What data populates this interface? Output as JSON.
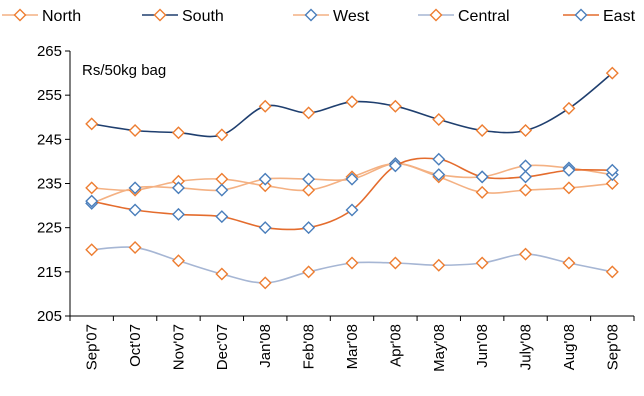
{
  "chart_data": {
    "type": "line",
    "title": "",
    "unit_label": "Rs/50kg bag",
    "xlabel": "",
    "ylabel": "",
    "ylim": [
      205,
      265
    ],
    "yticks": [
      205,
      215,
      225,
      235,
      245,
      255,
      265
    ],
    "grid": false,
    "legend_position": "top",
    "categories": [
      "Sep'07",
      "Oct'07",
      "Nov'07",
      "Dec'07",
      "Jan'08",
      "Feb'08",
      "Mar'08",
      "Apr'08",
      "May'08",
      "Jun'08",
      "July'08",
      "Aug'08",
      "Sep'08"
    ],
    "series": [
      {
        "name": "North",
        "color": "#f4b183",
        "marker": "#ed7d31",
        "values": [
          234,
          233.5,
          235.5,
          236,
          234.5,
          233.5,
          236.5,
          239.5,
          236.5,
          233,
          233.5,
          234,
          235
        ]
      },
      {
        "name": "South",
        "color": "#1f3f6f",
        "marker": "#ed7d31",
        "values": [
          248.5,
          247,
          246.5,
          246,
          252.5,
          251,
          253.5,
          252.5,
          249.5,
          247,
          247,
          252,
          260
        ]
      },
      {
        "name": "West",
        "color": "#f4b183",
        "marker": "#4a7ebb",
        "values": [
          230.5,
          234,
          234,
          233.5,
          236,
          236,
          236,
          239.5,
          237,
          236.5,
          239,
          238.5,
          237
        ]
      },
      {
        "name": "Central",
        "color": "#a6b6d4",
        "marker": "#ed7d31",
        "values": [
          220,
          220.5,
          217.5,
          214.5,
          212.5,
          215,
          217,
          217,
          216.5,
          217,
          219,
          217,
          215
        ]
      },
      {
        "name": "East",
        "color": "#e46c2d",
        "marker": "#4a7ebb",
        "values": [
          231,
          229,
          228,
          227.5,
          225,
          225,
          229,
          239,
          240.5,
          236.5,
          236.5,
          238,
          238
        ]
      }
    ]
  }
}
